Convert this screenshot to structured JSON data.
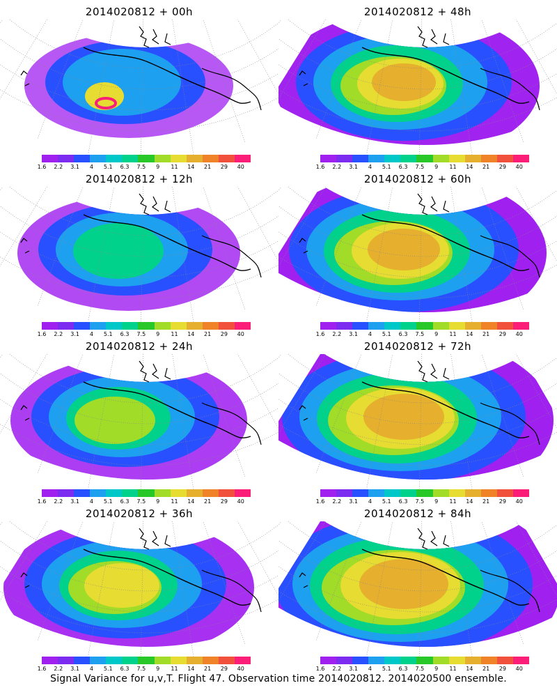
{
  "figure": {
    "caption": "Signal Variance for u,v,T. Flight 47. Observation time 2014020812. 2014020500 ensemble."
  },
  "colorbar": {
    "labels": [
      "1.6",
      "2.2",
      "3.1",
      "4",
      "5.1",
      "6.3",
      "7.5",
      "9",
      "11",
      "14",
      "21",
      "29",
      "40"
    ],
    "colors": [
      "#a020f0",
      "#7b2cf0",
      "#2850ff",
      "#1ea0f0",
      "#00c8c8",
      "#00d28c",
      "#28c828",
      "#a0dc28",
      "#e6dc32",
      "#e6af2d",
      "#f08228",
      "#f0503c",
      "#fa1e78"
    ]
  },
  "panels": [
    {
      "title": "2014020812 + 00h",
      "level": 0
    },
    {
      "title": "2014020812 + 48h",
      "level": 4
    },
    {
      "title": "2014020812 + 12h",
      "level": 1
    },
    {
      "title": "2014020812 + 60h",
      "level": 5
    },
    {
      "title": "2014020812 + 24h",
      "level": 2
    },
    {
      "title": "2014020812 + 72h",
      "level": 6
    },
    {
      "title": "2014020812 + 36h",
      "level": 3
    },
    {
      "title": "2014020812 + 84h",
      "level": 7
    }
  ]
}
